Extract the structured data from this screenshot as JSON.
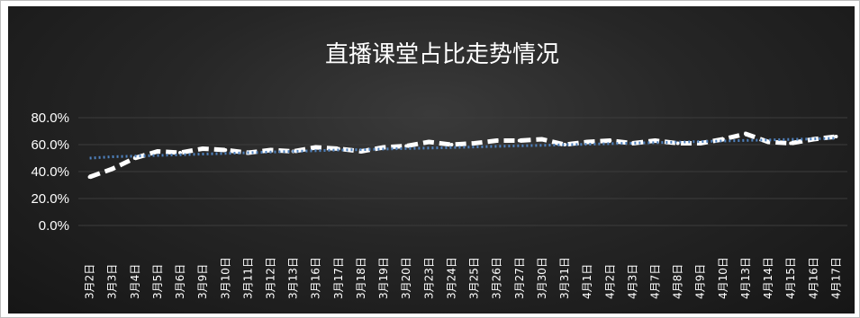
{
  "chart_data": {
    "type": "line",
    "title": "直播课堂占比走势情况",
    "xlabel": "",
    "ylabel": "",
    "y_ticks": [
      "80.0%",
      "60.0%",
      "40.0%",
      "20.0%",
      "0.0%"
    ],
    "ylim": [
      0,
      80
    ],
    "grid": true,
    "legend": "none",
    "categories": [
      "3月2日",
      "3月3日",
      "3月4日",
      "3月5日",
      "3月6日",
      "3月9日",
      "3月10日",
      "3月11日",
      "3月12日",
      "3月13日",
      "3月16日",
      "3月17日",
      "3月18日",
      "3月19日",
      "3月20日",
      "3月23日",
      "3月24日",
      "3月25日",
      "3月26日",
      "3月27日",
      "3月30日",
      "3月31日",
      "4月1日",
      "4月2日",
      "4月3日",
      "4月7日",
      "4月8日",
      "4月9日",
      "4月10日",
      "4月13日",
      "4月14日",
      "4月15日",
      "4月16日",
      "4月17日"
    ],
    "series": [
      {
        "values": [
          36,
          42,
          50,
          55,
          54,
          57,
          56,
          54,
          56,
          55,
          58,
          57,
          55,
          58,
          59,
          62,
          60,
          61,
          63,
          63,
          64,
          60,
          62,
          63,
          61,
          63,
          61,
          61,
          64,
          68,
          62,
          61,
          64,
          66
        ],
        "style": "dashed",
        "color": "#ffffff"
      },
      {
        "values": [
          50,
          51,
          51.5,
          52,
          52.5,
          53,
          53.5,
          54,
          54.5,
          55,
          55.5,
          56,
          56.3,
          56.7,
          57.1,
          57.5,
          57.9,
          58.3,
          58.7,
          59.1,
          59.5,
          59.9,
          60.3,
          60.7,
          61.1,
          61.5,
          61.9,
          62.3,
          62.7,
          63.1,
          63.5,
          63.9,
          64.3,
          64.7
        ],
        "style": "dotted",
        "color": "#4f81bd"
      }
    ]
  }
}
